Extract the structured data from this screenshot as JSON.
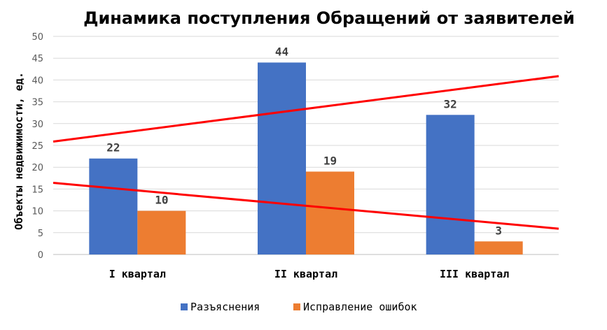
{
  "chart_data": {
    "type": "bar",
    "title": "Динамика поступления Обращений от заявителей",
    "xlabel": "",
    "ylabel": "Объекты недвижимости, ед.",
    "categories": [
      "I квартал",
      "II квартал",
      "III квартал"
    ],
    "series": [
      {
        "name": "Разъяснения",
        "values": [
          22,
          44,
          32
        ],
        "color": "#4472C4"
      },
      {
        "name": "Исправление ошибок",
        "values": [
          10,
          19,
          3
        ],
        "color": "#ED7D31"
      }
    ],
    "ylim": [
      0,
      50
    ],
    "yticks": [
      0,
      5,
      10,
      15,
      20,
      25,
      30,
      35,
      40,
      45,
      50
    ],
    "grid": true,
    "legend": "bottom",
    "trendlines": [
      {
        "series": "Разъяснения",
        "color": "#FF0000"
      },
      {
        "series": "Исправление ошибок",
        "color": "#FF0000"
      }
    ]
  }
}
